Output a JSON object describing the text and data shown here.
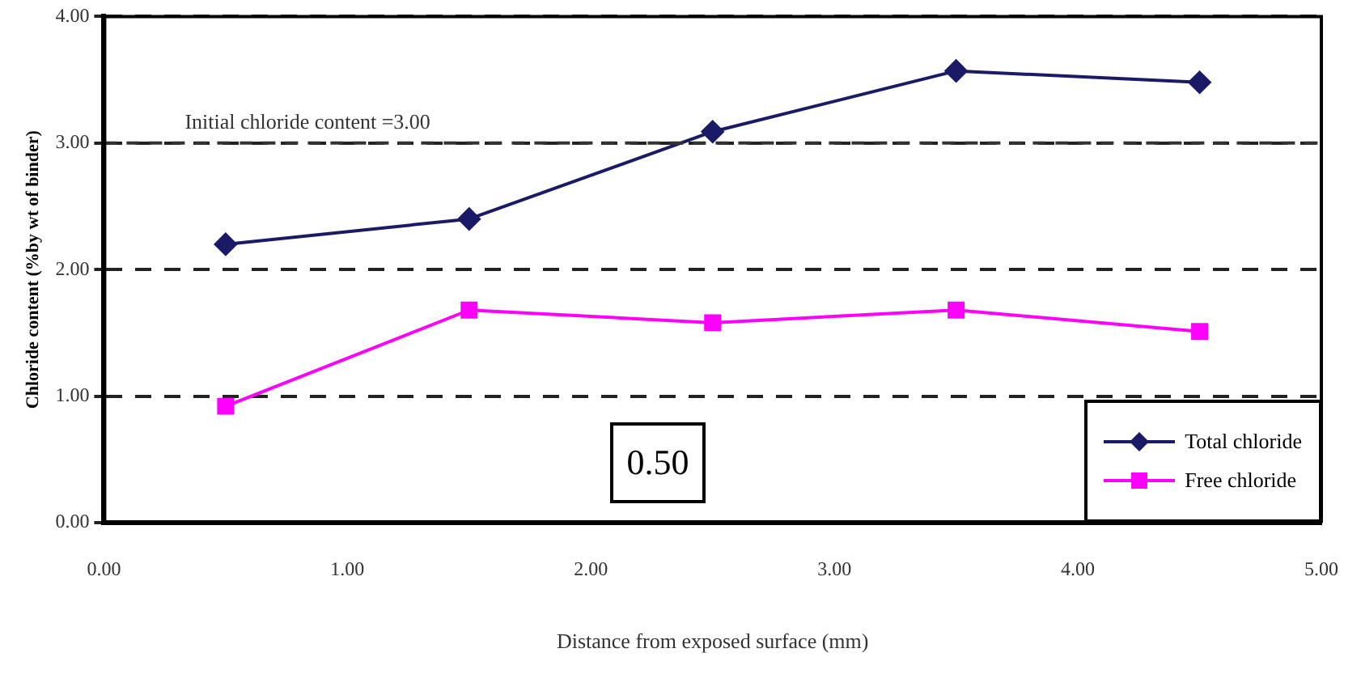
{
  "chart_data": {
    "type": "line",
    "xlabel": "Distance from exposed surface (mm)",
    "ylabel": "Chloride content (%by wt of binder)",
    "x": [
      0.5,
      1.5,
      2.5,
      3.5,
      4.5
    ],
    "series": [
      {
        "name": "Total chloride",
        "color": "#1a1a66",
        "marker": "diamond",
        "values": [
          2.2,
          2.4,
          3.09,
          3.57,
          3.48
        ]
      },
      {
        "name": "Free chloride",
        "color": "#ff00ff",
        "marker": "square",
        "values": [
          0.92,
          1.68,
          1.58,
          1.68,
          1.51
        ]
      }
    ],
    "xlim": [
      0,
      5
    ],
    "xticks": [
      {
        "value": 0,
        "label": "0.00"
      },
      {
        "value": 1,
        "label": "1.00"
      },
      {
        "value": 2,
        "label": "2.00"
      },
      {
        "value": 3,
        "label": "3.00"
      },
      {
        "value": 4,
        "label": "4.00"
      },
      {
        "value": 5,
        "label": "5.00"
      }
    ],
    "ylim": [
      0,
      4
    ],
    "yticks": [
      {
        "value": 0,
        "label": "0.00"
      },
      {
        "value": 1,
        "label": "1.00"
      },
      {
        "value": 2,
        "label": "2.00"
      },
      {
        "value": 3,
        "label": "3.00"
      },
      {
        "value": 4,
        "label": "4.00"
      }
    ],
    "grid": "y",
    "legend": "bottom right",
    "line_style": "solid",
    "ref_lines": [
      {
        "axis": "y",
        "value": 3,
        "label": "Initial chloride content =3.00",
        "line_style": "dashed"
      }
    ],
    "annotations": [
      "0.50"
    ]
  }
}
